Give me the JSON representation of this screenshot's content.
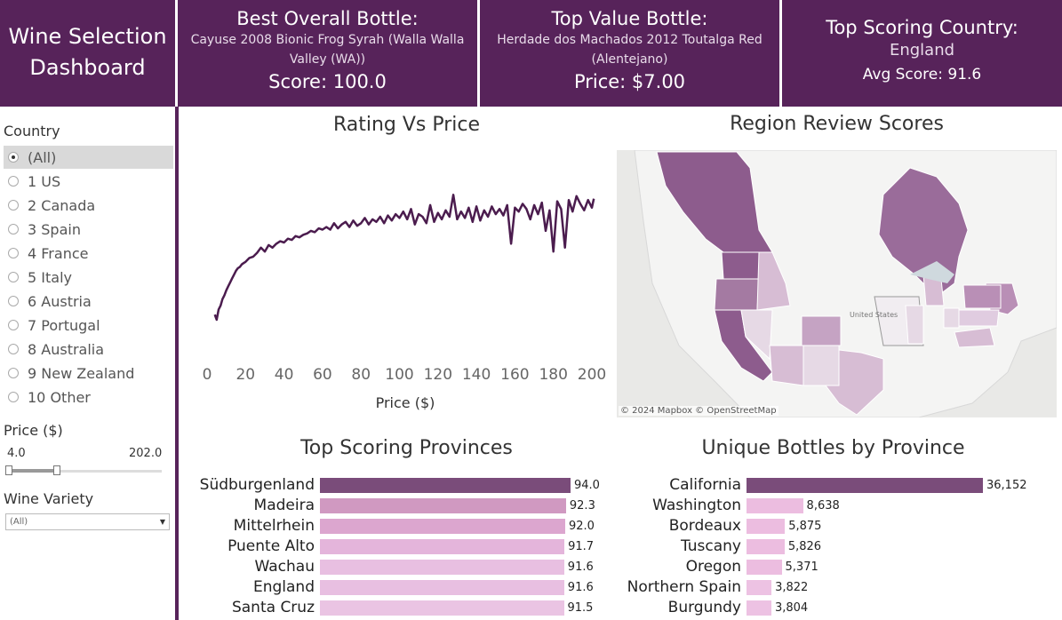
{
  "header": {
    "dashboard_title_line1": "Wine Selection",
    "dashboard_title_line2": "Dashboard",
    "best": {
      "label": "Best Overall Bottle:",
      "name": "Cayuse 2008 Bionic Frog Syrah (Walla Walla Valley (WA))",
      "value": "Score: 100.0"
    },
    "value": {
      "label": "Top Value Bottle:",
      "name": "Herdade dos Machados 2012 Toutalga Red (Alentejano)",
      "value": "Price: $7.00"
    },
    "country": {
      "label": "Top Scoring Country:",
      "name": "England",
      "value": "Avg Score: 91.6"
    }
  },
  "sidebar": {
    "country_label": "Country",
    "countries": [
      "(All)",
      "1 US",
      "2 Canada",
      "3 Spain",
      "4 France",
      "5 Italy",
      "6 Austria",
      "7 Portugal",
      "8 Australia",
      "9 New Zealand",
      "10 Other"
    ],
    "selected_index": 0,
    "price_label": "Price ($)",
    "price_min": "4.0",
    "price_max": "202.0",
    "variety_label": "Wine Variety",
    "variety_value": "(All)"
  },
  "line_section": {
    "title": "Rating Vs Price"
  },
  "map_section": {
    "title": "Region Review Scores",
    "attribution": "© 2024 Mapbox © OpenStreetMap",
    "label_united_states": "United States"
  },
  "provinces_section": {
    "title": "Top Scoring Provinces"
  },
  "bottles_section": {
    "title": "Unique Bottles by Province"
  },
  "chart_data": [
    {
      "type": "line",
      "xlabel": "Price ($)",
      "ylabel": "",
      "xlim": [
        0,
        202
      ],
      "xticks": [
        "0",
        "20",
        "40",
        "60",
        "80",
        "100",
        "120",
        "140",
        "160",
        "180",
        "200"
      ],
      "series": [
        {
          "color": "#4b1c4e",
          "x": [
            4,
            5,
            6,
            7,
            8,
            9,
            10,
            11,
            12,
            13,
            14,
            15,
            16,
            17,
            18,
            19,
            20,
            22,
            24,
            26,
            28,
            30,
            32,
            34,
            36,
            38,
            40,
            42,
            44,
            46,
            48,
            50,
            52,
            54,
            56,
            58,
            60,
            62,
            64,
            66,
            68,
            70,
            72,
            74,
            76,
            78,
            80,
            82,
            84,
            86,
            88,
            90,
            92,
            94,
            96,
            98,
            100,
            102,
            104,
            106,
            108,
            110,
            112,
            114,
            116,
            118,
            120,
            122,
            124,
            126,
            128,
            130,
            132,
            134,
            136,
            138,
            140,
            142,
            144,
            146,
            148,
            150,
            152,
            154,
            156,
            158,
            160,
            162,
            164,
            166,
            168,
            170,
            172,
            174,
            176,
            178,
            180,
            182,
            184,
            186,
            188,
            190,
            192,
            194,
            196,
            198,
            200,
            202
          ],
          "y": [
            82.4,
            82.0,
            82.8,
            83.1,
            83.6,
            83.9,
            84.3,
            84.6,
            84.9,
            85.2,
            85.5,
            85.8,
            86.0,
            86.1,
            86.3,
            86.4,
            86.5,
            86.8,
            86.9,
            87.2,
            87.6,
            87.3,
            87.8,
            87.6,
            87.9,
            88.1,
            88.0,
            88.3,
            88.2,
            88.5,
            88.4,
            88.6,
            88.7,
            88.9,
            88.8,
            89.1,
            89.0,
            89.2,
            89.0,
            89.5,
            89.1,
            89.4,
            89.6,
            89.2,
            89.7,
            89.3,
            89.5,
            89.9,
            89.4,
            89.8,
            89.6,
            90.0,
            89.5,
            90.1,
            89.7,
            90.2,
            89.9,
            90.4,
            89.8,
            90.6,
            89.4,
            90.2,
            90.0,
            89.5,
            90.9,
            89.6,
            90.3,
            89.8,
            90.5,
            90.0,
            91.7,
            89.8,
            90.4,
            89.9,
            90.7,
            89.6,
            90.8,
            89.7,
            90.5,
            90.0,
            90.8,
            90.2,
            90.6,
            90.1,
            90.9,
            87.9,
            90.7,
            90.4,
            91.0,
            90.6,
            89.8,
            90.9,
            90.2,
            91.1,
            88.9,
            90.5,
            87.3,
            91.2,
            90.6,
            87.6,
            91.3,
            90.4,
            91.6,
            91.0,
            90.5,
            91.3,
            90.7,
            91.4
          ]
        }
      ]
    },
    {
      "type": "bar",
      "title": "Top Scoring Provinces",
      "categories": [
        "Südburgenland",
        "Madeira",
        "Mittelrhein",
        "Puente Alto",
        "Wachau",
        "England",
        "Santa Cruz"
      ],
      "values": [
        94.0,
        92.3,
        92.0,
        91.7,
        91.6,
        91.6,
        91.5
      ],
      "labels": [
        "94.0",
        "92.3",
        "92.0",
        "91.7",
        "91.6",
        "91.6",
        "91.5"
      ],
      "colors": [
        "#7a4c7a",
        "#d099c1",
        "#dca6cf",
        "#e4b5db",
        "#e8bfe1",
        "#e8bfe1",
        "#eac4e3"
      ]
    },
    {
      "type": "bar",
      "title": "Unique Bottles by Province",
      "categories": [
        "California",
        "Washington",
        "Bordeaux",
        "Tuscany",
        "Oregon",
        "Northern Spain",
        "Burgundy"
      ],
      "values": [
        36152,
        8638,
        5875,
        5826,
        5371,
        3822,
        3804
      ],
      "labels": [
        "36,152",
        "8,638",
        "5,875",
        "5,826",
        "5,371",
        "3,822",
        "3,804"
      ],
      "colors": [
        "#7a4c7a",
        "#ecbde0",
        "#ecbde0",
        "#ecbde0",
        "#ecbde0",
        "#edc2e3",
        "#edc2e3"
      ]
    }
  ]
}
